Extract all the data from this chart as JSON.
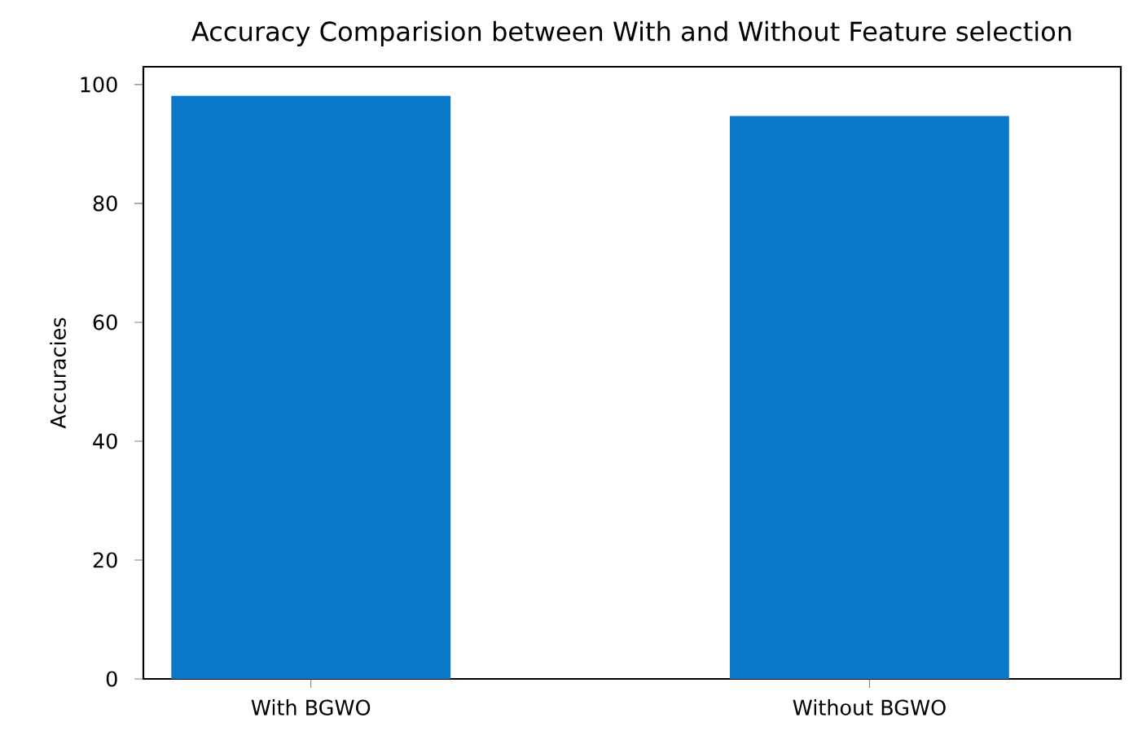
{
  "chart_data": {
    "type": "bar",
    "title": "Accuracy Comparision between With and Without Feature selection",
    "ylabel": "Accuracies",
    "categories": [
      "With BGWO",
      "Without BGWO"
    ],
    "values": [
      98.1,
      94.7
    ],
    "color": "#0b78c9",
    "ylim": [
      0,
      103
    ],
    "yticks": [
      0,
      20,
      40,
      60,
      80,
      100
    ]
  }
}
